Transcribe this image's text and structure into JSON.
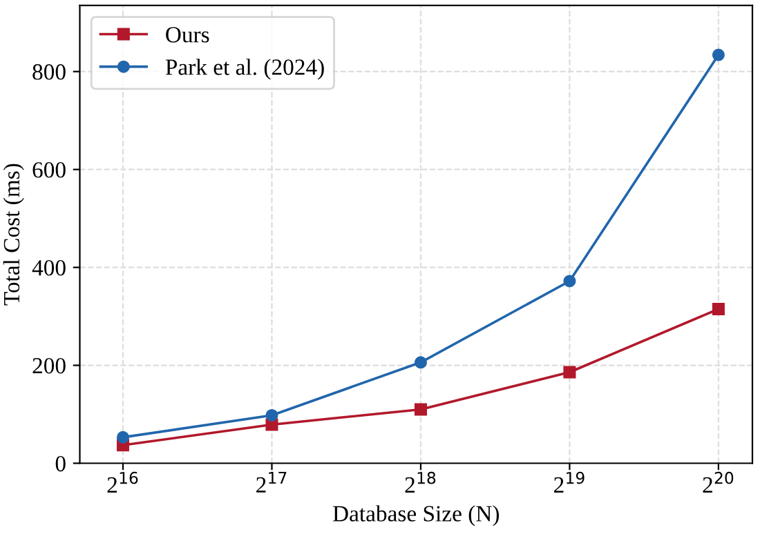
{
  "chart_data": {
    "type": "line",
    "xlabel": "Database Size (N)",
    "ylabel": "Total Cost (ms)",
    "x": [
      65536,
      131072,
      262144,
      524288,
      1048576
    ],
    "series": [
      {
        "name": "Ours",
        "color": "#b2182b",
        "marker": "square",
        "values": [
          37,
          79,
          110,
          186,
          315
        ]
      },
      {
        "name": "Park et al. (2024)",
        "color": "#2166ac",
        "marker": "circle",
        "values": [
          53,
          98,
          206,
          372,
          834
        ]
      }
    ],
    "log": "x",
    "xlim": [
      53600,
      1228000
    ],
    "xticks": [
      {
        "value": 65536,
        "label": "2$^{16}$"
      },
      {
        "value": 131072,
        "label": "2$^{17}$"
      },
      {
        "value": 262144,
        "label": "2$^{18}$"
      },
      {
        "value": 524288,
        "label": "2$^{19}$"
      },
      {
        "value": 1048576,
        "label": "2$^{20}$"
      }
    ],
    "ylim": [
      0,
      935
    ],
    "yticks": [
      0,
      200,
      400,
      600,
      800
    ],
    "grid": true,
    "legend": "top left",
    "line_style": "solid"
  }
}
